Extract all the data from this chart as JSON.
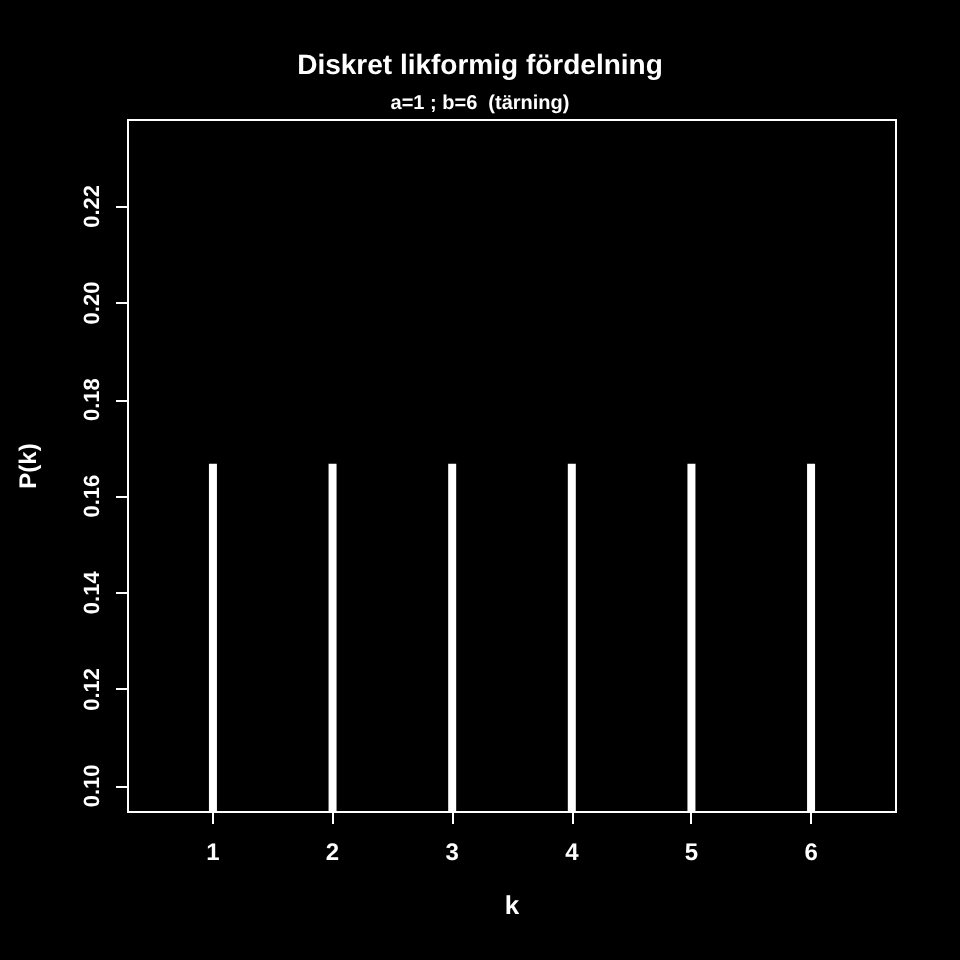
{
  "chart_data": {
    "type": "bar",
    "title": "Diskret likformig fördelning",
    "subtitle": "a=1 ; b=6  (tärning)",
    "xlabel": "k",
    "ylabel": "P(k)",
    "x": [
      1,
      2,
      3,
      4,
      5,
      6
    ],
    "values": [
      0.1667,
      0.1667,
      0.1667,
      0.1667,
      0.1667,
      0.1667
    ],
    "color": "#ffffff",
    "xlim": [
      0.29,
      6.71
    ],
    "xticks": [
      1,
      2,
      3,
      4,
      5,
      6
    ],
    "ylim": [
      0.0946,
      0.2379
    ],
    "yticks": [
      {
        "value": 0.1,
        "label": "0.10"
      },
      0.12,
      0.14,
      0.16,
      0.18,
      {
        "value": 0.2,
        "label": "0.20"
      },
      0.22
    ],
    "grid": false
  }
}
